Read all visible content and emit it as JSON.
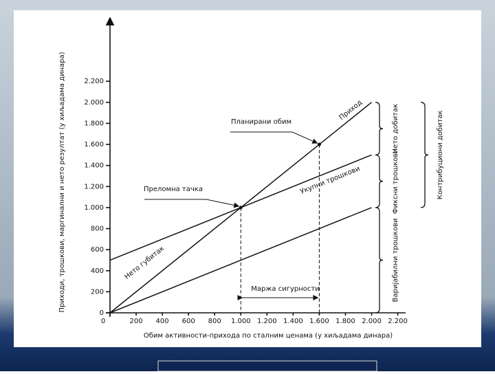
{
  "chart_data": {
    "type": "line",
    "ylabel": "Приходи, трошкови, маргинални и нето резултат (у хиљадама динара)",
    "xlabel": "Обим активности-прихода по сталним ценама (у хиљадама динара)",
    "x": [
      0,
      1000,
      1600,
      2000
    ],
    "series": [
      {
        "name": "Приход",
        "color": "#111111",
        "values": [
          0,
          1000,
          1600,
          2000
        ]
      },
      {
        "name": "Укупни трошкови",
        "color": "#111111",
        "values": [
          500,
          1000,
          1300,
          1500
        ]
      },
      {
        "name": "Варијабилни трошкови",
        "color": "#111111",
        "values": [
          0,
          500,
          800,
          1000
        ]
      }
    ],
    "annotations": {
      "break_even": "Преломна тачка",
      "planned": "Планирани обим",
      "loss": "Нето губитак",
      "margin": "Маржа сигурности",
      "profit": "Нето добитак",
      "fixed": "Фиксни трошкови",
      "contribution": "Контрибуциони добитак"
    },
    "xlim": [
      0,
      2260
    ],
    "ylim": [
      0,
      2750
    ],
    "xticks": [
      0,
      200,
      400,
      600,
      800,
      {
        "value": 1000,
        "label": "1.000"
      },
      {
        "value": 1200,
        "label": "1.200"
      },
      {
        "value": 1400,
        "label": "1.400"
      },
      {
        "value": 1600,
        "label": "1.600"
      },
      {
        "value": 1800,
        "label": "1.800"
      },
      {
        "value": 2000,
        "label": "2.000"
      },
      {
        "value": 2200,
        "label": "2.200"
      }
    ],
    "yticks": [
      0,
      200,
      400,
      600,
      800,
      {
        "value": 1000,
        "label": "1.000"
      },
      {
        "value": 1200,
        "label": "1.200"
      },
      {
        "value": 1400,
        "label": "1.400"
      },
      {
        "value": 1600,
        "label": "1.600"
      },
      {
        "value": 1800,
        "label": "1.800"
      },
      {
        "value": 2000,
        "label": "2.000"
      },
      {
        "value": 2200,
        "label": "2.200"
      }
    ]
  }
}
